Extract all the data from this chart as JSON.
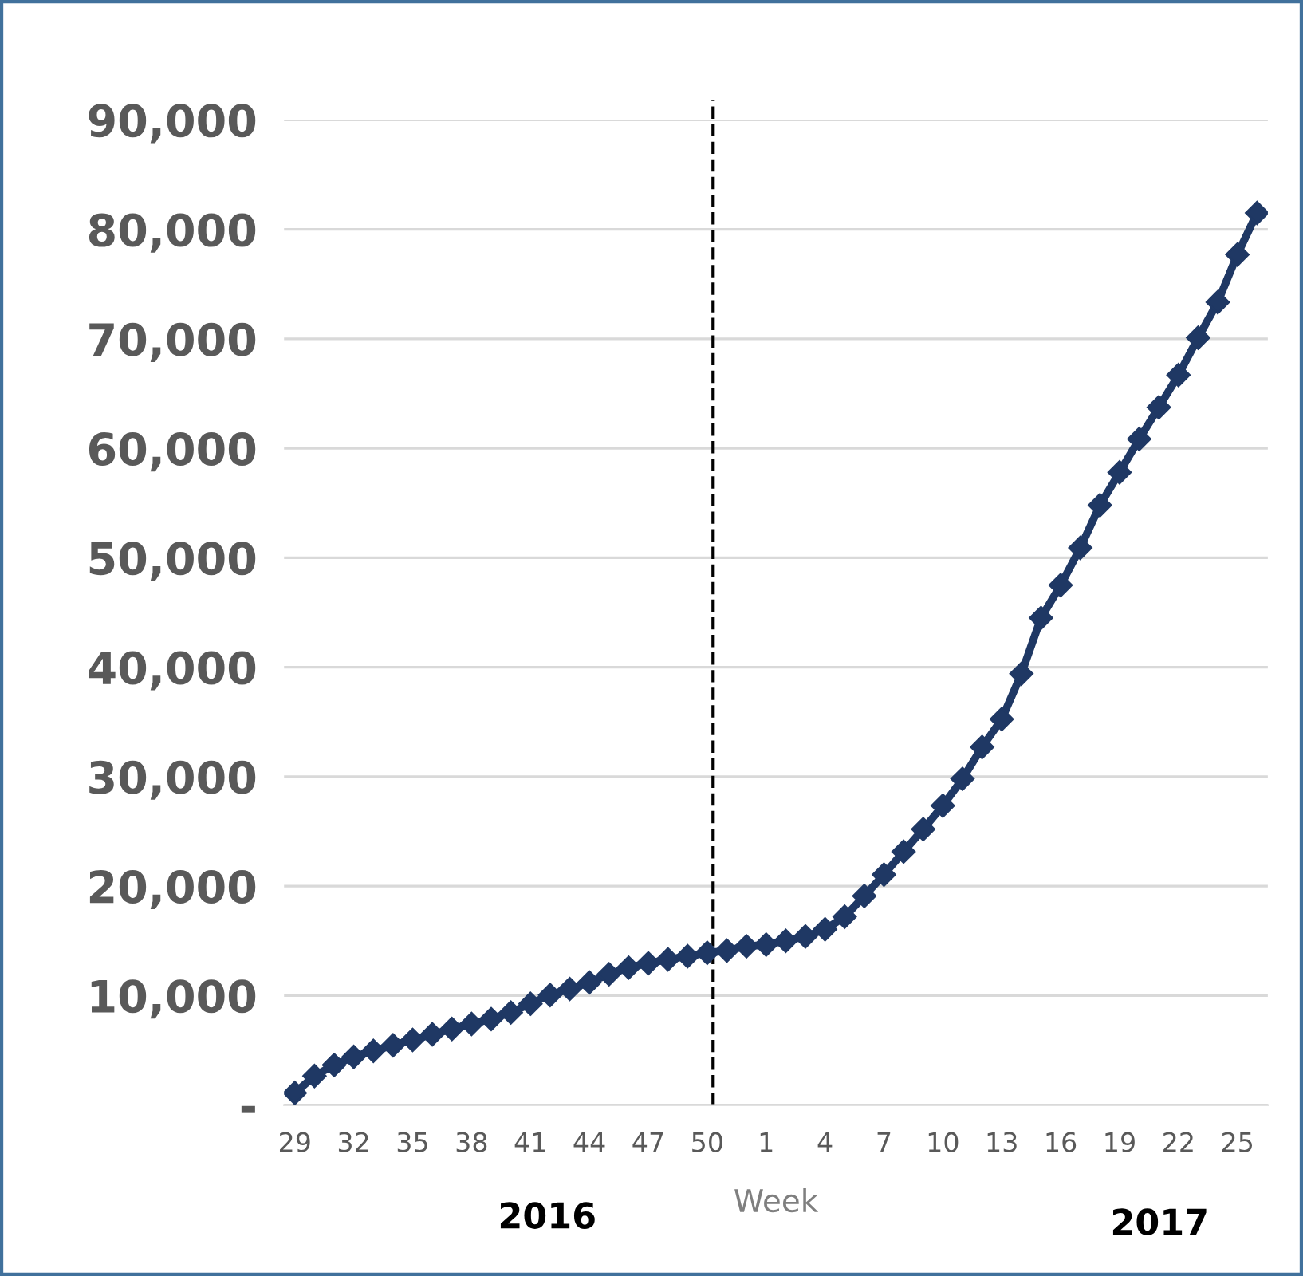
{
  "chart_data": {
    "type": "line",
    "categories": [
      "29",
      null,
      null,
      "32",
      null,
      null,
      "35",
      null,
      null,
      "38",
      null,
      null,
      "41",
      null,
      null,
      "44",
      null,
      null,
      "47",
      null,
      null,
      "50",
      null,
      null,
      "1",
      null,
      null,
      "4",
      null,
      null,
      "7",
      null,
      null,
      "10",
      null,
      null,
      "13",
      null,
      null,
      "16",
      null,
      null,
      "19",
      null,
      null,
      "22",
      null,
      null,
      "25",
      null
    ],
    "series": [
      {
        "color": "#1f3864",
        "values": [
          1100,
          2650,
          3650,
          4400,
          4950,
          5450,
          5950,
          6450,
          6950,
          7400,
          7850,
          8450,
          9250,
          10050,
          10600,
          11200,
          11950,
          12550,
          12950,
          13300,
          13600,
          13900,
          14100,
          14500,
          14650,
          15000,
          15400,
          16050,
          17200,
          19100,
          21050,
          23150,
          25200,
          27350,
          29800,
          32700,
          35250,
          39400,
          44500,
          47500,
          50900,
          54800,
          57800,
          60850,
          63750,
          66700,
          70100,
          73350,
          77700,
          81500
        ]
      }
    ],
    "ylim": [
      0,
      90000
    ],
    "yticks": [
      {
        "value": 0,
        "label": "-"
      },
      {
        "value": 10000,
        "label": "10,000"
      },
      {
        "value": 20000,
        "label": "20,000"
      },
      {
        "value": 30000,
        "label": "30,000"
      },
      {
        "value": 40000,
        "label": "40,000"
      },
      {
        "value": 50000,
        "label": "50,000"
      },
      {
        "value": 60000,
        "label": "60,000"
      },
      {
        "value": 70000,
        "label": "70,000"
      },
      {
        "value": 80000,
        "label": "80,000"
      },
      {
        "value": 90000,
        "label": "90,000"
      }
    ],
    "xlabel": "Week",
    "annotations": [
      "2016",
      "2017"
    ],
    "ref_lines": [
      {
        "axis": "x",
        "value": "50",
        "color": "#000000",
        "line_style": "dashed"
      }
    ],
    "grid": "y",
    "legend": false,
    "marker": "diamond",
    "line_style": "solid"
  }
}
